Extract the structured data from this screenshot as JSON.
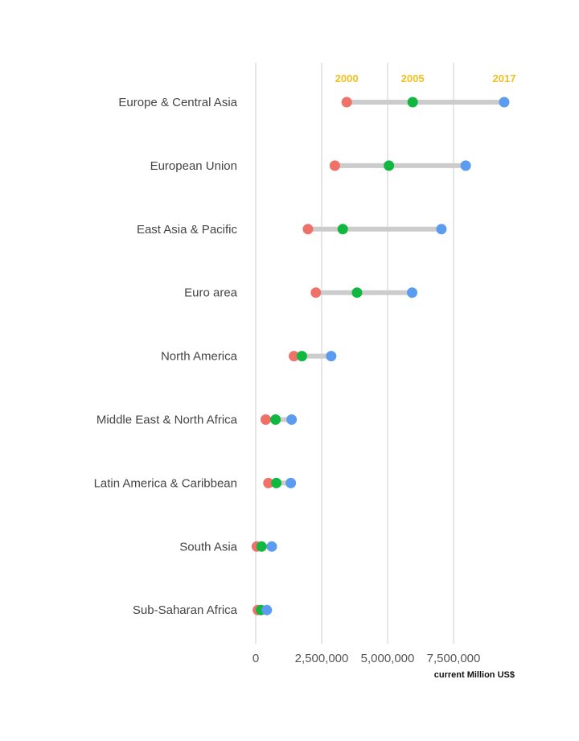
{
  "chart_data": {
    "type": "dumbbell",
    "categories": [
      "Europe & Central Asia",
      "European Union",
      "East Asia & Pacific",
      "Euro area",
      "North America",
      "Middle East & North Africa",
      "Latin America & Caribbean",
      "South Asia",
      "Sub-Saharan Africa"
    ],
    "series": [
      {
        "name": "2000",
        "color": "#f07167",
        "values": [
          3450000,
          3000000,
          1980000,
          2280000,
          1450000,
          380000,
          480000,
          40000,
          80000
        ]
      },
      {
        "name": "2005",
        "color": "#10b840",
        "values": [
          5950000,
          5050000,
          3300000,
          3840000,
          1750000,
          750000,
          780000,
          220000,
          200000
        ]
      },
      {
        "name": "2017",
        "color": "#5b9bf0",
        "values": [
          9420000,
          7960000,
          7040000,
          5930000,
          2860000,
          1360000,
          1330000,
          610000,
          420000
        ]
      }
    ],
    "series_label_color": "#f0c020",
    "connector_color": "#cccccc",
    "gridline_color": "#cccccc",
    "xlim": [
      0,
      10000000
    ],
    "x_ticks": [
      0,
      2500000,
      5000000,
      7500000
    ],
    "x_tick_labels": [
      "0",
      "2,500,000",
      "5,000,000",
      "7,500,000"
    ],
    "xlabel": "current Million US$",
    "grid": true
  }
}
